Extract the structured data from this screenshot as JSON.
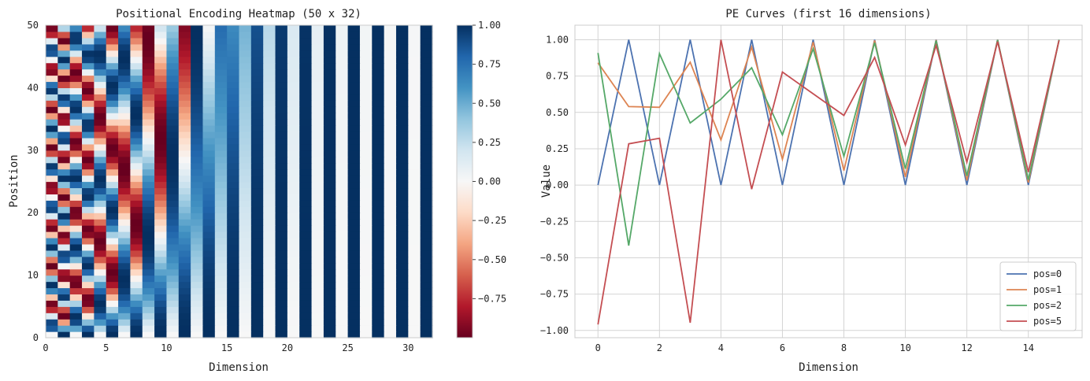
{
  "chart_data": [
    {
      "type": "heatmap",
      "title": "Positional Encoding Heatmap (50 x 32)",
      "xlabel": "Dimension",
      "ylabel": "Position",
      "rows": 50,
      "cols": 32,
      "d_model": 32,
      "xlim": [
        0,
        32
      ],
      "ylim": [
        0,
        50
      ],
      "xticks": [
        0,
        5,
        10,
        15,
        20,
        25,
        30
      ],
      "yticks": [
        0,
        10,
        20,
        30,
        40,
        50
      ],
      "colormap": "RdBu",
      "vmin": -1.0,
      "vmax": 1.0,
      "colorbar_ticks": [
        1.0,
        0.75,
        0.5,
        0.25,
        0.0,
        -0.25,
        -0.5,
        -0.75
      ],
      "colorbar_tick_labels": [
        "1.00",
        "0.75",
        "0.50",
        "0.25",
        "0.00",
        "−0.25",
        "−0.50",
        "−0.75"
      ],
      "colormap_stops": [
        "#67001f",
        "#b2182b",
        "#d6604d",
        "#f4a582",
        "#fddbc7",
        "#f7f7f7",
        "#d1e5f0",
        "#92c5de",
        "#4393c3",
        "#2166ac",
        "#053061"
      ]
    },
    {
      "type": "line",
      "title": "PE Curves (first 16 dimensions)",
      "xlabel": "Dimension",
      "ylabel": "Value",
      "xlim": [
        -0.75,
        15.75
      ],
      "ylim": [
        -1.05,
        1.1
      ],
      "xticks": [
        0,
        2,
        4,
        6,
        8,
        10,
        12,
        14
      ],
      "yticks": [
        1.0,
        0.75,
        0.5,
        0.25,
        0.0,
        -0.25,
        -0.5,
        -0.75,
        -1.0
      ],
      "ytick_labels": [
        "1.00",
        "0.75",
        "0.50",
        "0.25",
        "0.00",
        "−0.25",
        "−0.50",
        "−0.75",
        "−1.00"
      ],
      "grid": true,
      "legend": "lower-right",
      "x": [
        0,
        1,
        2,
        3,
        4,
        5,
        6,
        7,
        8,
        9,
        10,
        11,
        12,
        13,
        14,
        15
      ],
      "series": [
        {
          "name": "pos=0",
          "color": "#4c72b0",
          "values": [
            0.0,
            1.0,
            0.0,
            1.0,
            0.0,
            1.0,
            0.0,
            1.0,
            0.0,
            1.0,
            0.0,
            1.0,
            0.0,
            1.0,
            0.0,
            1.0
          ]
        },
        {
          "name": "pos=1",
          "color": "#dd8452",
          "values": [
            0.841,
            0.54,
            0.535,
            0.845,
            0.311,
            0.95,
            0.178,
            0.984,
            0.1,
            0.995,
            0.056,
            0.998,
            0.032,
            0.9995,
            0.018,
            0.9998
          ]
        },
        {
          "name": "pos=2",
          "color": "#55a868",
          "values": [
            0.909,
            -0.416,
            0.904,
            0.427,
            0.591,
            0.807,
            0.346,
            0.938,
            0.198,
            0.98,
            0.112,
            0.994,
            0.063,
            0.998,
            0.036,
            0.9994
          ]
        },
        {
          "name": "pos=5",
          "color": "#c44e52",
          "values": [
            -0.959,
            0.284,
            0.322,
            -0.947,
            0.9996,
            -0.028,
            0.778,
            0.628,
            0.479,
            0.878,
            0.276,
            0.961,
            0.158,
            0.987,
            0.089,
            0.996
          ]
        }
      ]
    }
  ]
}
